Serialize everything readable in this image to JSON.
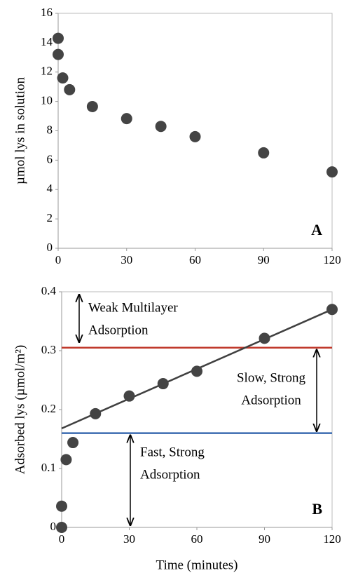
{
  "chart_data": [
    {
      "type": "scatter",
      "panel_label": "A",
      "ylabel": "µmol lys in solution",
      "xlim": [
        0,
        120
      ],
      "ylim": [
        0,
        16
      ],
      "xticks": [
        0,
        30,
        60,
        90,
        120
      ],
      "yticks": [
        0,
        2,
        4,
        6,
        8,
        10,
        12,
        14,
        16
      ],
      "series": [
        {
          "color": "#444444",
          "x": [
            0,
            0,
            2,
            5,
            15,
            30,
            45,
            60,
            90,
            120
          ],
          "values": [
            14.3,
            13.2,
            11.6,
            10.8,
            9.65,
            8.83,
            8.3,
            7.6,
            6.5,
            5.2
          ]
        }
      ]
    },
    {
      "type": "scatter",
      "panel_label": "B",
      "ylabel": "Adsorbed lys (µmol/m²)",
      "xlabel": "Time (minutes)",
      "xlim": [
        0,
        120
      ],
      "ylim": [
        0,
        0.4
      ],
      "xticks": [
        0,
        30,
        60,
        90,
        120
      ],
      "yticks": [
        0,
        0.1,
        0.2,
        0.3,
        0.4
      ],
      "series": [
        {
          "color": "#444444",
          "x": [
            0,
            0,
            2,
            5,
            15,
            30,
            45,
            60,
            90,
            120
          ],
          "values": [
            0,
            0.036,
            0.115,
            0.144,
            0.193,
            0.223,
            0.244,
            0.265,
            0.321,
            0.37
          ]
        }
      ],
      "trend_line": {
        "color": "#404040",
        "x": [
          0,
          120
        ],
        "values": [
          0.168,
          0.37
        ]
      },
      "reference_lines": [
        {
          "value": 0.305,
          "color": "#c0392b"
        },
        {
          "value": 0.16,
          "color": "#3a6ab0"
        }
      ],
      "annotations": [
        {
          "lines": [
            "Weak Multilayer",
            "Adsorption"
          ]
        },
        {
          "lines": [
            "Slow, Strong",
            "Adsorption"
          ]
        },
        {
          "lines": [
            "Fast, Strong",
            "Adsorption"
          ]
        }
      ]
    }
  ]
}
